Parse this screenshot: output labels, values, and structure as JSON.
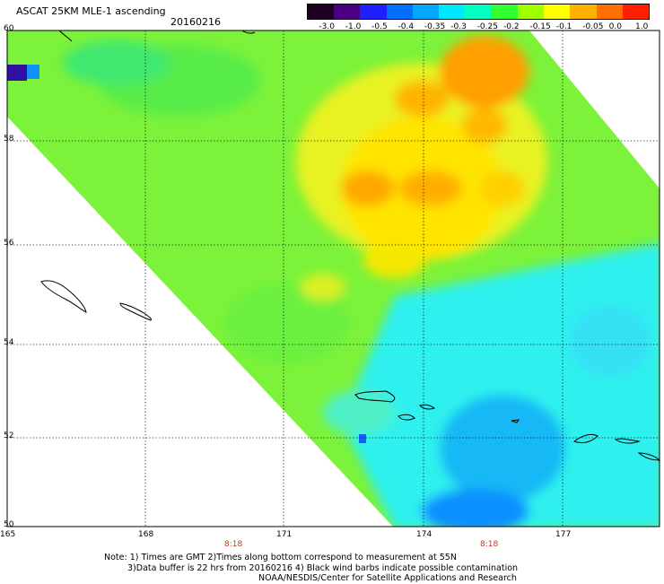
{
  "header": {
    "title": "ASCAT 25KM MLE-1 ascending",
    "date": "20160216"
  },
  "colorbar": {
    "labels": [
      "-3.0",
      "-1.0",
      "-0.5",
      "-0.4",
      "-0.35",
      "-0.3",
      "-0.25",
      "-0.2",
      "-0.15",
      "-0.1",
      "-0.05",
      "0.0",
      "1.0"
    ],
    "colors": [
      "#200020",
      "#4b0082",
      "#2020ff",
      "#0070ff",
      "#00a8ff",
      "#00e8ff",
      "#00ffc0",
      "#30ff30",
      "#a0ff00",
      "#ffff00",
      "#ffb000",
      "#ff7000",
      "#ff2000"
    ]
  },
  "axes": {
    "lat_labels": [
      "60",
      "58",
      "56",
      "54",
      "52",
      "50"
    ],
    "lon_labels": [
      "165",
      "168",
      "171",
      "174",
      "177"
    ]
  },
  "time_labels": [
    "8:18",
    "8:18"
  ],
  "notes": {
    "line1": "Note: 1) Times are GMT 2)Times along bottom correspond to measurement at 55N",
    "line2": "3)Data buffer is 22 hrs from 20160216 4) Black wind barbs indicate possible contamination",
    "line3": "NOAA/NESDIS/Center for Satellite Applications and Research"
  }
}
